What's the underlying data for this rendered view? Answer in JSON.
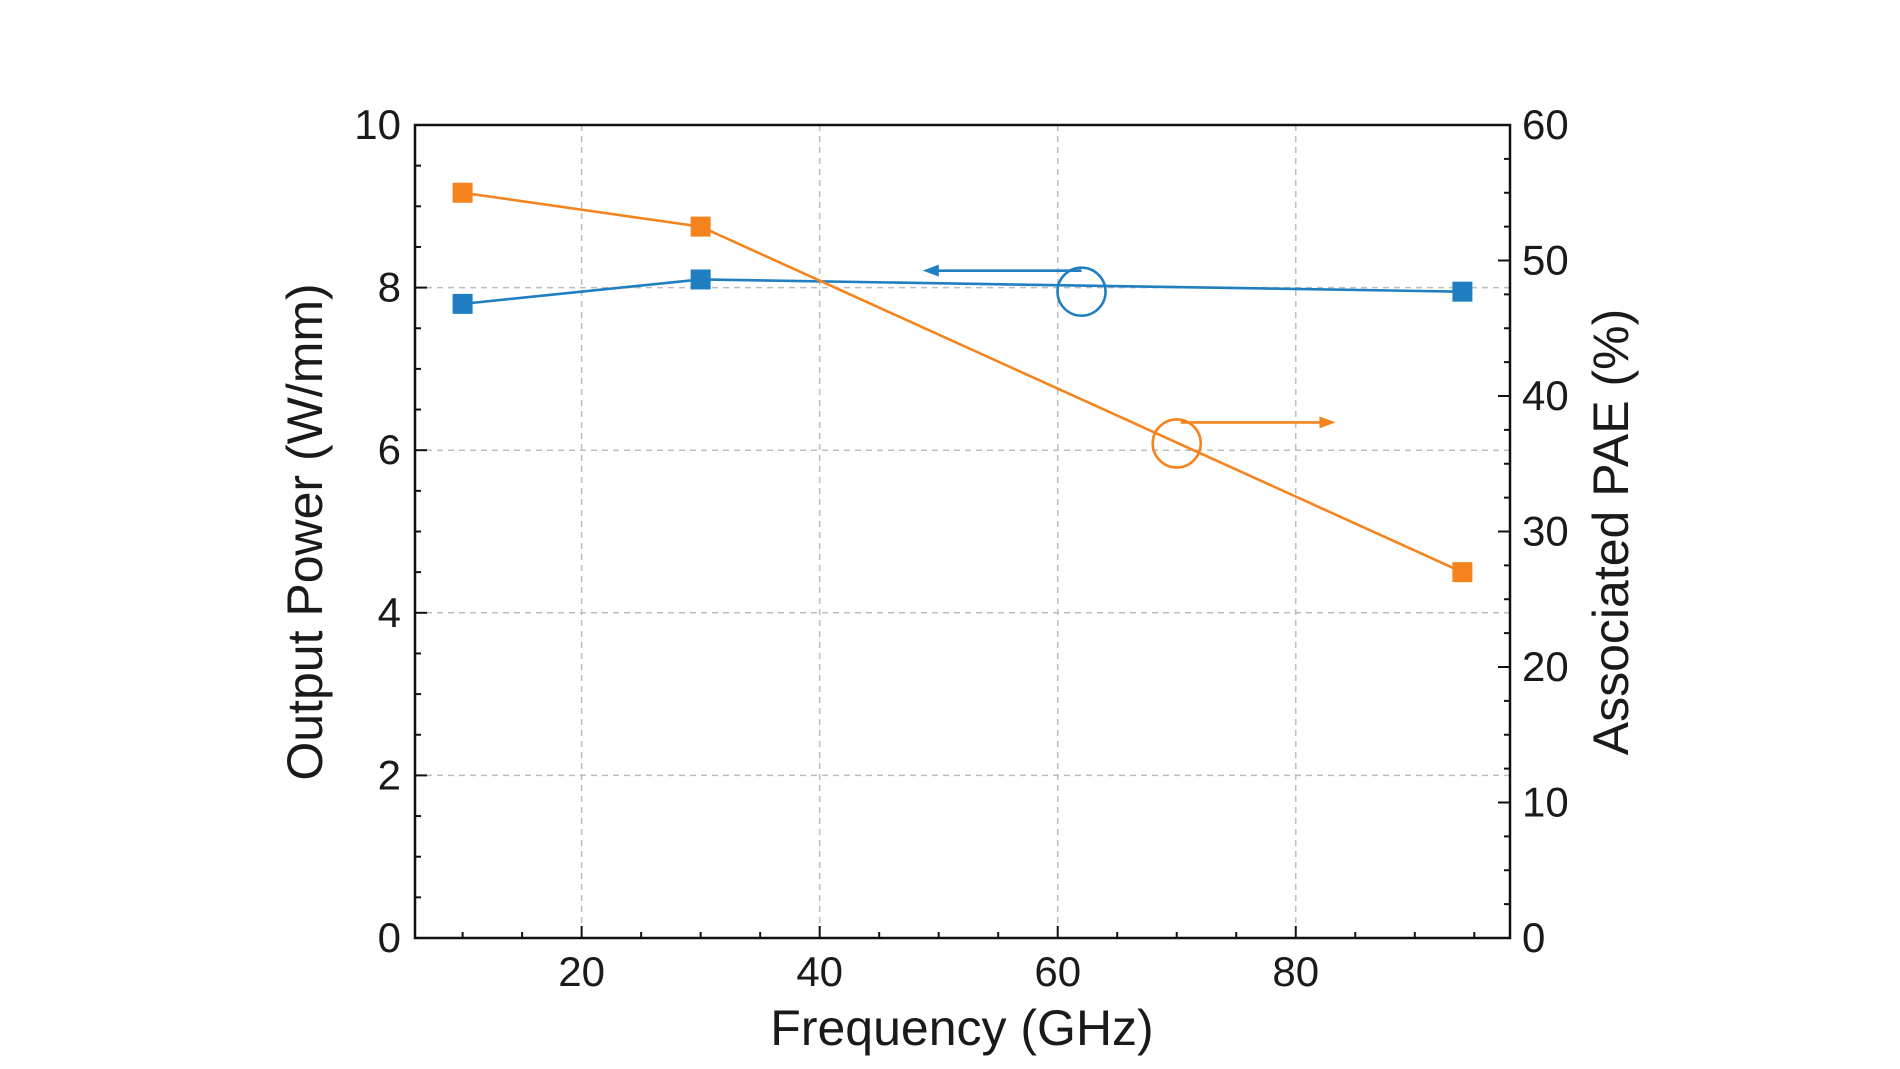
{
  "chart_data": {
    "type": "line",
    "title": "",
    "xlabel": "Frequency (GHz)",
    "ylabel_left": "Output Power (W/mm)",
    "ylabel_right": "Associated PAE (%)",
    "xlim": [
      6,
      98
    ],
    "ylim_left": [
      0,
      10
    ],
    "ylim_right": [
      0,
      60
    ],
    "x_ticks": [
      20,
      40,
      60,
      80
    ],
    "y_ticks_left": [
      0,
      2,
      4,
      6,
      8,
      10
    ],
    "y_ticks_right": [
      0,
      10,
      20,
      30,
      40,
      50,
      60
    ],
    "grid": true,
    "series": [
      {
        "name": "Output Power",
        "axis": "left",
        "color": "#1f7fc0",
        "marker": "square",
        "x": [
          10,
          30,
          94
        ],
        "values": [
          7.8,
          8.1,
          7.95
        ]
      },
      {
        "name": "Associated PAE",
        "axis": "right",
        "color": "#f5841f",
        "marker": "square",
        "x": [
          10,
          30,
          94
        ],
        "values": [
          55,
          52.5,
          27
        ]
      }
    ],
    "annotations": [
      {
        "name": "output-power-axis-indicator",
        "series": 0,
        "direction": "left",
        "circle_at": [
          62,
          7.95
        ],
        "arrow_to_x": 49
      },
      {
        "name": "pae-axis-indicator",
        "series": 1,
        "direction": "right",
        "circle_at": [
          70,
          36.5
        ],
        "arrow_to_x": 83
      }
    ]
  }
}
